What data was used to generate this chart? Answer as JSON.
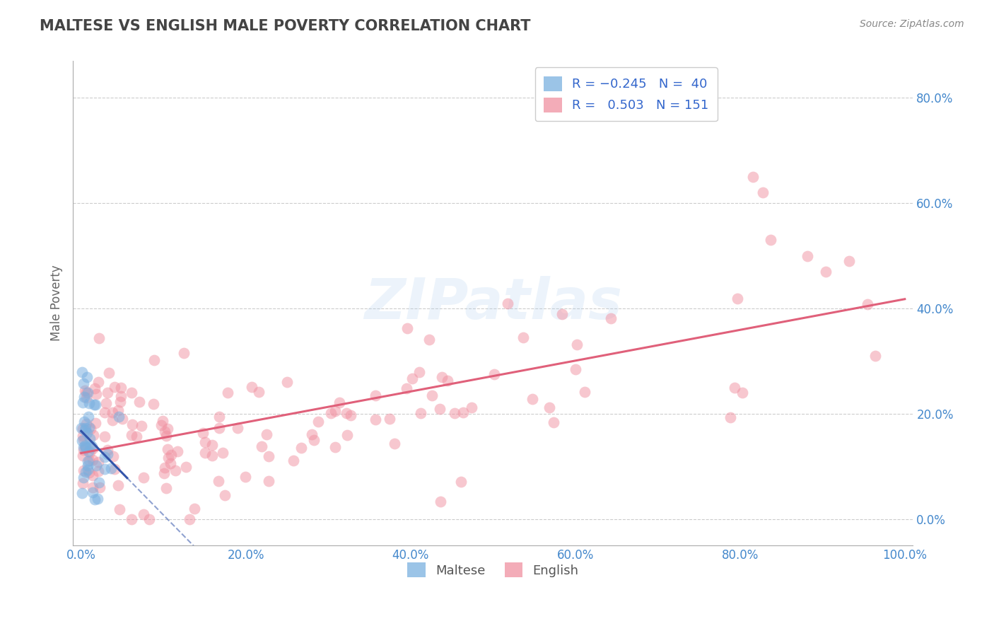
{
  "title": "MALTESE VS ENGLISH MALE POVERTY CORRELATION CHART",
  "source": "Source: ZipAtlas.com",
  "ylabel": "Male Poverty",
  "maltese_color": "#7ab0e0",
  "english_color": "#f090a0",
  "maltese_line_color": "#3355aa",
  "english_line_color": "#e0607a",
  "maltese_alpha": 0.55,
  "english_alpha": 0.5,
  "dot_size": 130,
  "background_color": "#ffffff",
  "grid_color": "#cccccc",
  "title_color": "#444444",
  "axis_label_color": "#4488cc",
  "watermark": "ZIPatlas",
  "R_maltese": -0.245,
  "N_maltese": 40,
  "R_english": 0.503,
  "N_english": 151,
  "xmin": 0.0,
  "xmax": 1.0,
  "ymin": -0.05,
  "ymax": 0.87,
  "english_line_y0": 0.125,
  "english_line_y1": 0.335,
  "maltese_line_y0": 0.155,
  "maltese_line_slope": -0.9
}
